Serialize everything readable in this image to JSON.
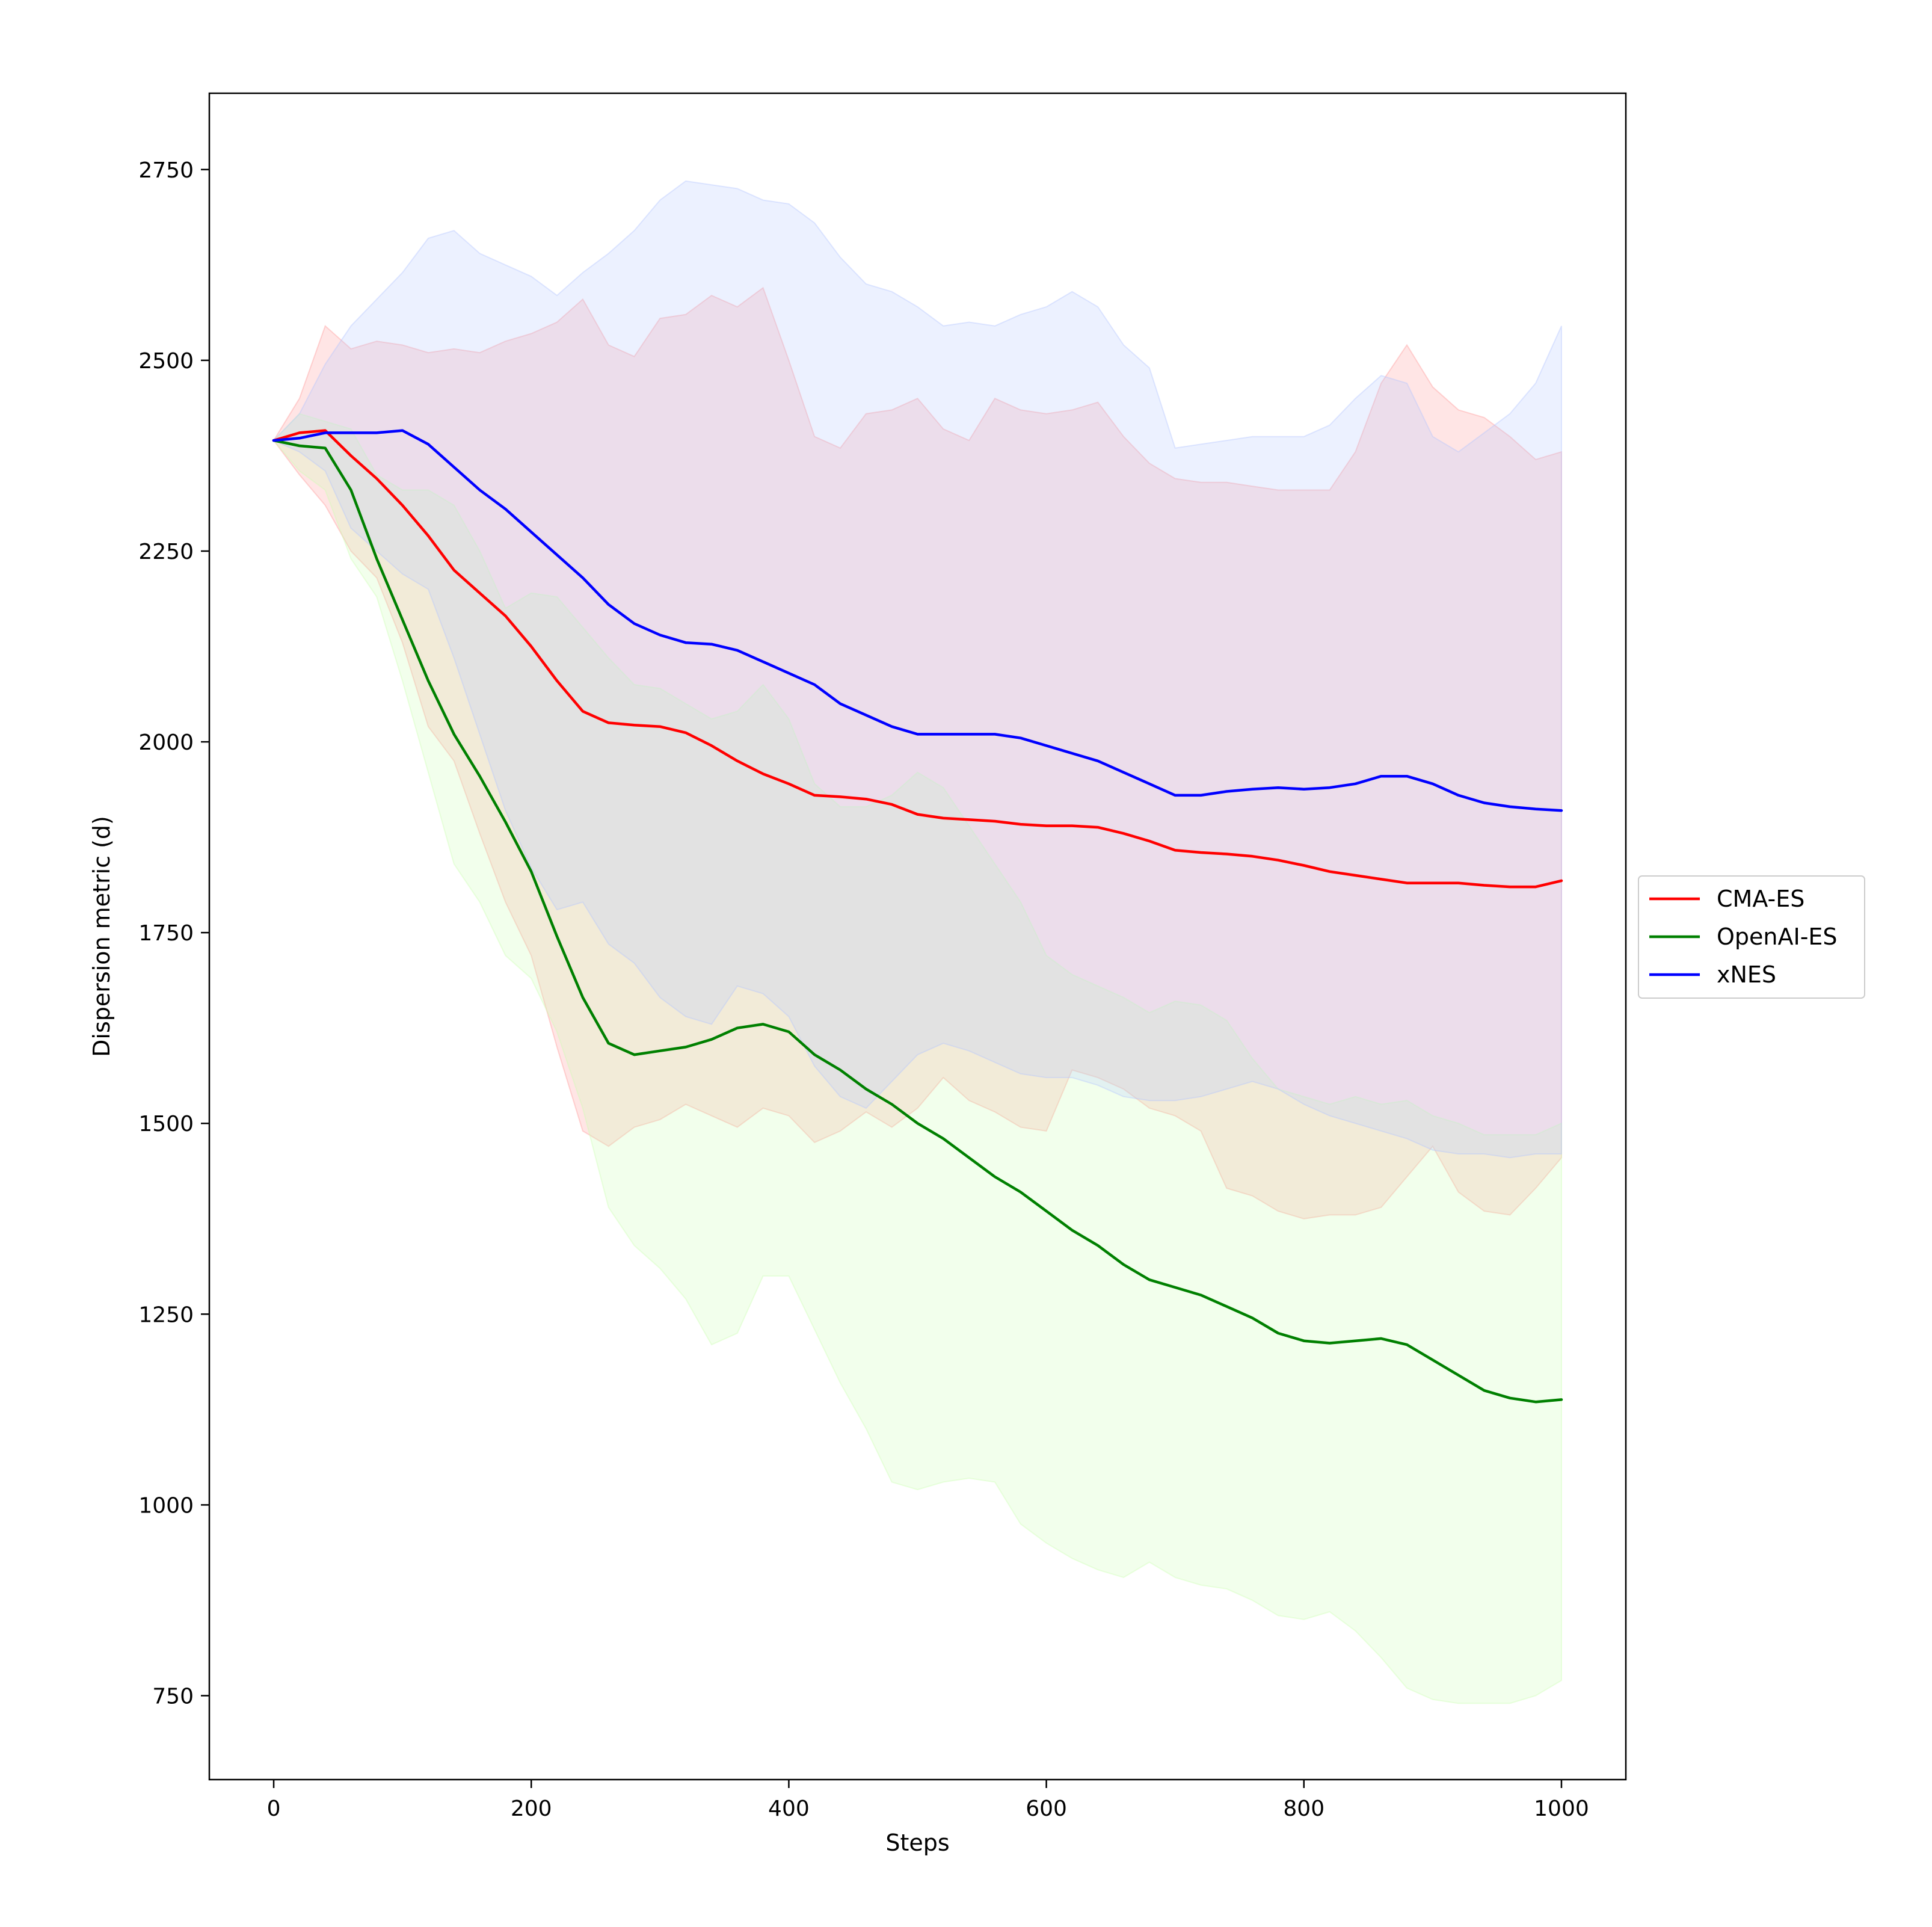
{
  "chart_data": {
    "type": "line",
    "xlabel": "Steps",
    "ylabel": "Dispersion metric (d)",
    "xlim": [
      -50,
      1050
    ],
    "ylim": [
      640,
      2850
    ],
    "xticks": [
      0,
      200,
      400,
      600,
      800,
      1000
    ],
    "yticks": [
      750,
      1000,
      1250,
      1500,
      1750,
      2000,
      2250,
      2500,
      2750
    ],
    "grid": false,
    "legend_position": "right",
    "series": [
      {
        "name": "CMA-ES",
        "color": "#ff0000",
        "band_color": "#ff9999",
        "x": [
          0,
          20,
          40,
          60,
          80,
          100,
          120,
          140,
          160,
          180,
          200,
          220,
          240,
          260,
          280,
          300,
          320,
          340,
          360,
          380,
          400,
          420,
          440,
          460,
          480,
          500,
          520,
          540,
          560,
          580,
          600,
          620,
          640,
          660,
          680,
          700,
          720,
          740,
          760,
          780,
          800,
          820,
          840,
          860,
          880,
          900,
          920,
          940,
          960,
          980,
          1000
        ],
        "y": [
          2395,
          2405,
          2408,
          2375,
          2345,
          2310,
          2270,
          2225,
          2195,
          2165,
          2125,
          2080,
          2040,
          2025,
          2022,
          2020,
          2012,
          1995,
          1975,
          1958,
          1945,
          1930,
          1928,
          1925,
          1918,
          1905,
          1900,
          1898,
          1896,
          1892,
          1890,
          1890,
          1888,
          1880,
          1870,
          1858,
          1855,
          1853,
          1850,
          1845,
          1838,
          1830,
          1825,
          1820,
          1815,
          1815,
          1815,
          1812,
          1810,
          1810,
          1818
        ],
        "upper": [
          2395,
          2450,
          2545,
          2515,
          2525,
          2520,
          2510,
          2515,
          2510,
          2525,
          2535,
          2550,
          2580,
          2520,
          2505,
          2555,
          2560,
          2585,
          2570,
          2595,
          2500,
          2400,
          2385,
          2430,
          2435,
          2450,
          2410,
          2395,
          2450,
          2435,
          2430,
          2435,
          2445,
          2400,
          2365,
          2345,
          2340,
          2340,
          2335,
          2330,
          2330,
          2330,
          2380,
          2470,
          2520,
          2465,
          2435,
          2425,
          2400,
          2370,
          2380
        ],
        "lower": [
          2395,
          2350,
          2310,
          2250,
          2215,
          2130,
          2020,
          1975,
          1880,
          1790,
          1720,
          1600,
          1490,
          1470,
          1495,
          1505,
          1525,
          1510,
          1495,
          1520,
          1510,
          1475,
          1490,
          1515,
          1495,
          1520,
          1560,
          1530,
          1515,
          1495,
          1490,
          1570,
          1560,
          1545,
          1520,
          1510,
          1490,
          1415,
          1405,
          1385,
          1375,
          1380,
          1380,
          1390,
          1430,
          1470,
          1410,
          1385,
          1380,
          1415,
          1455
        ]
      },
      {
        "name": "OpenAI-ES",
        "color": "#008000",
        "band_color": "#ccffb3",
        "x": [
          0,
          20,
          40,
          60,
          80,
          100,
          120,
          140,
          160,
          180,
          200,
          220,
          240,
          260,
          280,
          300,
          320,
          340,
          360,
          380,
          400,
          420,
          440,
          460,
          480,
          500,
          520,
          540,
          560,
          580,
          600,
          620,
          640,
          660,
          680,
          700,
          720,
          740,
          760,
          780,
          800,
          820,
          840,
          860,
          880,
          900,
          920,
          940,
          960,
          980,
          1000
        ],
        "y": [
          2395,
          2388,
          2385,
          2330,
          2240,
          2160,
          2080,
          2010,
          1955,
          1895,
          1830,
          1745,
          1665,
          1605,
          1590,
          1595,
          1600,
          1610,
          1625,
          1630,
          1620,
          1590,
          1570,
          1545,
          1525,
          1500,
          1480,
          1455,
          1430,
          1410,
          1385,
          1360,
          1340,
          1315,
          1295,
          1285,
          1275,
          1260,
          1245,
          1225,
          1215,
          1212,
          1215,
          1218,
          1210,
          1190,
          1170,
          1150,
          1140,
          1135,
          1138
        ],
        "upper": [
          2395,
          2430,
          2420,
          2410,
          2350,
          2330,
          2330,
          2310,
          2250,
          2175,
          2195,
          2190,
          2150,
          2110,
          2075,
          2070,
          2050,
          2030,
          2040,
          2075,
          2030,
          1945,
          1915,
          1915,
          1930,
          1960,
          1940,
          1890,
          1840,
          1790,
          1720,
          1695,
          1680,
          1665,
          1645,
          1660,
          1655,
          1635,
          1585,
          1545,
          1535,
          1525,
          1535,
          1525,
          1530,
          1510,
          1500,
          1485,
          1485,
          1485,
          1500
        ],
        "lower": [
          2395,
          2355,
          2330,
          2240,
          2190,
          2080,
          1960,
          1840,
          1790,
          1720,
          1690,
          1620,
          1520,
          1390,
          1340,
          1310,
          1270,
          1210,
          1225,
          1300,
          1300,
          1230,
          1160,
          1100,
          1030,
          1020,
          1030,
          1035,
          1030,
          975,
          950,
          930,
          915,
          905,
          925,
          905,
          895,
          890,
          875,
          855,
          850,
          860,
          835,
          800,
          760,
          745,
          740,
          740,
          740,
          750,
          770
        ]
      },
      {
        "name": "xNES",
        "color": "#0000ff",
        "band_color": "#b3c6ff",
        "x": [
          0,
          20,
          40,
          60,
          80,
          100,
          120,
          140,
          160,
          180,
          200,
          220,
          240,
          260,
          280,
          300,
          320,
          340,
          360,
          380,
          400,
          420,
          440,
          460,
          480,
          500,
          520,
          540,
          560,
          580,
          600,
          620,
          640,
          660,
          680,
          700,
          720,
          740,
          760,
          780,
          800,
          820,
          840,
          860,
          880,
          900,
          920,
          940,
          960,
          980,
          1000
        ],
        "y": [
          2395,
          2398,
          2405,
          2405,
          2405,
          2408,
          2390,
          2360,
          2330,
          2305,
          2275,
          2245,
          2215,
          2180,
          2155,
          2140,
          2130,
          2128,
          2120,
          2105,
          2090,
          2075,
          2050,
          2035,
          2020,
          2010,
          2010,
          2010,
          2010,
          2005,
          1995,
          1985,
          1975,
          1960,
          1945,
          1930,
          1930,
          1935,
          1938,
          1940,
          1938,
          1940,
          1945,
          1955,
          1955,
          1945,
          1930,
          1920,
          1915,
          1912,
          1910
        ],
        "upper": [
          2395,
          2430,
          2495,
          2545,
          2580,
          2615,
          2660,
          2670,
          2640,
          2625,
          2610,
          2585,
          2615,
          2640,
          2670,
          2710,
          2735,
          2730,
          2725,
          2710,
          2705,
          2680,
          2635,
          2600,
          2590,
          2570,
          2545,
          2550,
          2545,
          2560,
          2570,
          2590,
          2570,
          2520,
          2490,
          2385,
          2390,
          2395,
          2400,
          2400,
          2400,
          2415,
          2450,
          2480,
          2470,
          2400,
          2380,
          2405,
          2430,
          2470,
          2545
        ],
        "lower": [
          2395,
          2380,
          2355,
          2280,
          2250,
          2220,
          2200,
          2110,
          2010,
          1910,
          1835,
          1780,
          1790,
          1735,
          1710,
          1665,
          1640,
          1630,
          1680,
          1670,
          1640,
          1575,
          1535,
          1520,
          1555,
          1590,
          1605,
          1595,
          1580,
          1565,
          1560,
          1560,
          1550,
          1535,
          1530,
          1530,
          1535,
          1545,
          1555,
          1545,
          1525,
          1510,
          1500,
          1490,
          1480,
          1465,
          1460,
          1460,
          1455,
          1460,
          1460
        ]
      }
    ]
  }
}
